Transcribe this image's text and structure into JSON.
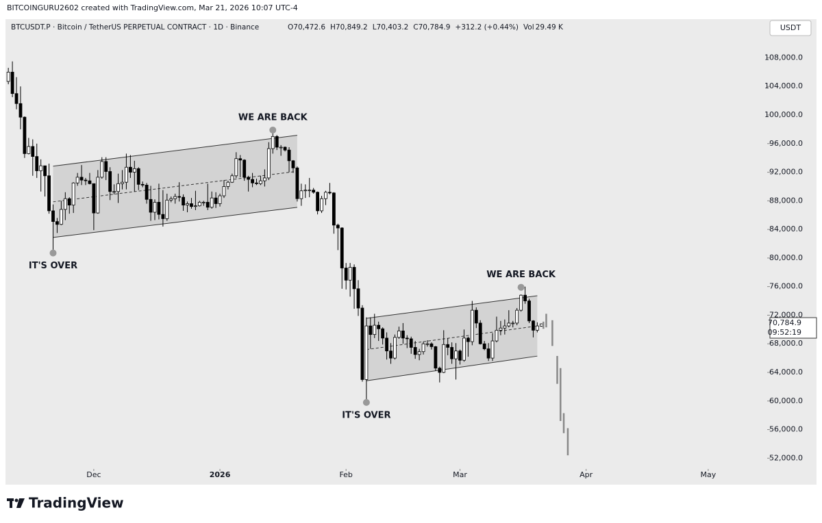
{
  "header": {
    "credit": "BITCOINGURU2602 created with TradingView.com, Mar 21, 2026 10:07 UTC-4",
    "symbol": "BTCUSDT.P · Bitcoin / TetherUS PERPETUAL CONTRACT · 1D · Binance",
    "quote": [
      "O70,472.6",
      "H70,849.2",
      "L70,403.2",
      "C70,784.9",
      "+312.2 (+0.44%)",
      "Vol",
      "29.49 K"
    ],
    "currency": "USDT",
    "last_price": "70,784.9",
    "countdown": "09:52:19",
    "logo": "TradingView"
  },
  "chart_data": {
    "type": "candlestick",
    "up_color": "#ffffff",
    "down_color": "#000000",
    "background": "#ebebeb",
    "xlim": [
      -0.7,
      186.5
    ],
    "xticks": [
      {
        "value": 21,
        "label": "Dec"
      },
      {
        "value": 52,
        "label": "2026"
      },
      {
        "value": 83,
        "label": "Feb"
      },
      {
        "value": 111,
        "label": "Mar"
      },
      {
        "value": 142,
        "label": "Apr"
      },
      {
        "value": 172,
        "label": "May"
      }
    ],
    "ylim": [
      50500,
      111300
    ],
    "yticks": [
      {
        "value": 52000,
        "label": "52,000.0"
      },
      {
        "value": 56000,
        "label": "56,000.0"
      },
      {
        "value": 60000,
        "label": "60,000.0"
      },
      {
        "value": 64000,
        "label": "64,000.0"
      },
      {
        "value": 68000,
        "label": "68,000.0"
      },
      {
        "value": 72000,
        "label": "72,000.0"
      },
      {
        "value": 76000,
        "label": "76,000.0"
      },
      {
        "value": 80000,
        "label": "80,000.0"
      },
      {
        "value": 84000,
        "label": "84,000.0"
      },
      {
        "value": 88000,
        "label": "88,000.0"
      },
      {
        "value": 92000,
        "label": "92,000.0"
      },
      {
        "value": 96000,
        "label": "96,000.0"
      },
      {
        "value": 100000,
        "label": "100,000.0"
      },
      {
        "value": 104000,
        "label": "104,000.0"
      },
      {
        "value": 108000,
        "label": "108,000.0"
      }
    ],
    "candles": [
      [
        104700,
        106600,
        104300,
        106000
      ],
      [
        106000,
        107500,
        102500,
        103000
      ],
      [
        103000,
        105300,
        100800,
        101600
      ],
      [
        101600,
        104000,
        98000,
        99700
      ],
      [
        99700,
        99800,
        94000,
        94600
      ],
      [
        94600,
        96800,
        94500,
        95600
      ],
      [
        95600,
        96600,
        91500,
        94200
      ],
      [
        94200,
        96000,
        91200,
        92200
      ],
      [
        92200,
        93800,
        89300,
        92900
      ],
      [
        92900,
        92900,
        88600,
        91500
      ],
      [
        91500,
        93200,
        86200,
        86600
      ],
      [
        86600,
        87500,
        80600,
        85100
      ],
      [
        85100,
        85600,
        83500,
        84700
      ],
      [
        84700,
        88000,
        84600,
        86800
      ],
      [
        86800,
        89200,
        85300,
        88300
      ],
      [
        88300,
        88500,
        86200,
        87400
      ],
      [
        87400,
        90600,
        86300,
        90500
      ],
      [
        90500,
        91900,
        90100,
        91300
      ],
      [
        91300,
        93000,
        90200,
        90900
      ],
      [
        90900,
        91200,
        90200,
        90800
      ],
      [
        90800,
        91900,
        90300,
        90400
      ],
      [
        90400,
        90400,
        83900,
        86300
      ],
      [
        86300,
        92300,
        86200,
        91300
      ],
      [
        91300,
        94100,
        91100,
        93500
      ],
      [
        93500,
        94100,
        90900,
        92100
      ],
      [
        92100,
        92700,
        88100,
        89300
      ],
      [
        89300,
        90300,
        88900,
        89300
      ],
      [
        89300,
        91800,
        87700,
        90400
      ],
      [
        90400,
        92300,
        89600,
        90600
      ],
      [
        90600,
        94600,
        89600,
        92700
      ],
      [
        92700,
        94400,
        91200,
        92000
      ],
      [
        92000,
        93600,
        89300,
        92500
      ],
      [
        92500,
        92700,
        89500,
        90300
      ],
      [
        90300,
        90700,
        89900,
        90200
      ],
      [
        90200,
        90500,
        87600,
        88200
      ],
      [
        88200,
        90100,
        85200,
        86400
      ],
      [
        86400,
        88200,
        85300,
        87800
      ],
      [
        87800,
        90400,
        85400,
        86100
      ],
      [
        86100,
        89500,
        84400,
        85500
      ],
      [
        85500,
        89000,
        85200,
        88100
      ],
      [
        88100,
        88600,
        87800,
        88300
      ],
      [
        88300,
        89000,
        87600,
        88600
      ],
      [
        88600,
        90600,
        87900,
        88500
      ],
      [
        88500,
        88900,
        86600,
        87400
      ],
      [
        87400,
        87900,
        86400,
        87600
      ],
      [
        87600,
        88400,
        86900,
        87200
      ],
      [
        87200,
        89400,
        86700,
        87300
      ],
      [
        87300,
        88000,
        87200,
        87800
      ],
      [
        87800,
        88000,
        87300,
        87800
      ],
      [
        87800,
        90400,
        86700,
        87100
      ],
      [
        87100,
        89300,
        86900,
        88400
      ],
      [
        88400,
        89200,
        87000,
        87600
      ],
      [
        87600,
        89000,
        87200,
        88700
      ],
      [
        88700,
        90900,
        88400,
        90000
      ],
      [
        90000,
        90800,
        89600,
        90600
      ],
      [
        90600,
        91800,
        90500,
        91500
      ],
      [
        91500,
        94800,
        91200,
        93900
      ],
      [
        93900,
        94400,
        91300,
        93700
      ],
      [
        93700,
        93800,
        90800,
        91300
      ],
      [
        91300,
        91500,
        89300,
        91000
      ],
      [
        91000,
        91900,
        89900,
        90500
      ],
      [
        90500,
        91100,
        90200,
        90400
      ],
      [
        90400,
        91500,
        90200,
        90800
      ],
      [
        90800,
        92400,
        90000,
        91200
      ],
      [
        91200,
        96200,
        90900,
        95300
      ],
      [
        95300,
        97900,
        94600,
        97000
      ],
      [
        97000,
        97200,
        95100,
        95500
      ],
      [
        95500,
        95800,
        94300,
        95500
      ],
      [
        95500,
        95600,
        94900,
        95100
      ],
      [
        95100,
        95500,
        92000,
        93600
      ],
      [
        93600,
        93700,
        91900,
        92600
      ],
      [
        92600,
        92800,
        87900,
        88300
      ],
      [
        88300,
        90400,
        87300,
        89400
      ],
      [
        89400,
        90300,
        88400,
        89500
      ],
      [
        89500,
        91200,
        88500,
        89500
      ],
      [
        89500,
        89800,
        89000,
        89200
      ],
      [
        89200,
        89300,
        86100,
        86600
      ],
      [
        86600,
        88700,
        86300,
        88300
      ],
      [
        88300,
        89400,
        87400,
        89200
      ],
      [
        89200,
        90500,
        88900,
        89100
      ],
      [
        89100,
        89200,
        83400,
        84600
      ],
      [
        84600,
        84800,
        81100,
        84200
      ],
      [
        84200,
        84300,
        75700,
        78600
      ],
      [
        78600,
        79300,
        75600,
        76900
      ],
      [
        76900,
        79300,
        74600,
        78700
      ],
      [
        78700,
        79100,
        72900,
        75700
      ],
      [
        75700,
        76900,
        71900,
        73000
      ],
      [
        73000,
        73400,
        62700,
        63000
      ],
      [
        63000,
        71700,
        60000,
        70500
      ],
      [
        70500,
        71700,
        67300,
        69300
      ],
      [
        69300,
        72200,
        68800,
        70600
      ],
      [
        70600,
        71100,
        68400,
        70100
      ],
      [
        70100,
        70300,
        67900,
        68800
      ],
      [
        68800,
        69600,
        65800,
        67000
      ],
      [
        67000,
        68100,
        65200,
        66000
      ],
      [
        66000,
        69300,
        65800,
        68900
      ],
      [
        68900,
        70400,
        68700,
        69800
      ],
      [
        69800,
        70900,
        68000,
        68800
      ],
      [
        68800,
        69200,
        67400,
        68700
      ],
      [
        68700,
        69000,
        66600,
        67500
      ],
      [
        67500,
        68400,
        65900,
        66500
      ],
      [
        66500,
        67300,
        65700,
        66900
      ],
      [
        66900,
        68300,
        66500,
        68000
      ],
      [
        68000,
        68500,
        67600,
        68000
      ],
      [
        68000,
        68200,
        67200,
        67600
      ],
      [
        67600,
        67700,
        64200,
        64600
      ],
      [
        64600,
        64800,
        62600,
        64000
      ],
      [
        64000,
        69900,
        63900,
        67900
      ],
      [
        67900,
        68800,
        66400,
        67500
      ],
      [
        67500,
        68200,
        65200,
        65900
      ],
      [
        65900,
        68100,
        63000,
        67000
      ],
      [
        67000,
        67200,
        65100,
        65700
      ],
      [
        65700,
        70000,
        65500,
        68800
      ],
      [
        68800,
        69000,
        66200,
        68300
      ],
      [
        68300,
        74000,
        67800,
        72700
      ],
      [
        72700,
        73100,
        70200,
        70900
      ],
      [
        70900,
        71300,
        67900,
        68000
      ],
      [
        68000,
        68400,
        67100,
        67300
      ],
      [
        67300,
        68100,
        65600,
        66000
      ],
      [
        66000,
        69500,
        65600,
        68400
      ],
      [
        68400,
        71800,
        68200,
        69900
      ],
      [
        69900,
        71200,
        69200,
        70200
      ],
      [
        70200,
        71400,
        69300,
        70500
      ],
      [
        70500,
        72700,
        70300,
        70900
      ],
      [
        70900,
        71200,
        70300,
        70900
      ],
      [
        70900,
        73000,
        70600,
        72700
      ],
      [
        72700,
        74900,
        72500,
        74800
      ],
      [
        74800,
        76000,
        73600,
        74000
      ],
      [
        74000,
        74300,
        70900,
        71200
      ],
      [
        71200,
        71300,
        68900,
        69900
      ],
      [
        69900,
        71000,
        69600,
        70500
      ],
      [
        70472.6,
        70849.2,
        70403.2,
        70784.9
      ]
    ],
    "projection": {
      "color": "#888888",
      "x": [
        131.5,
        132.2,
        133.7,
        134.9,
        135.7,
        136.5,
        137.5
      ],
      "high": [
        71100,
        72200,
        71300,
        66300,
        64600,
        58300,
        56200
      ],
      "low": [
        70100,
        70300,
        67700,
        62400,
        57200,
        55500,
        52400
      ]
    },
    "channels": [
      {
        "x": [
          11,
          71
        ],
        "top": [
          92850,
          97160
        ],
        "bottom": [
          82870,
          87090
        ]
      },
      {
        "x": [
          88,
          130
        ],
        "top": [
          71560,
          74720
        ],
        "bottom": [
          62830,
          66280
        ]
      }
    ],
    "annotations": [
      {
        "text": "IT'S OVER",
        "x": 11,
        "price": 80700,
        "position": "below"
      },
      {
        "text": "WE ARE BACK",
        "x": 65,
        "price": 97900,
        "position": "above"
      },
      {
        "text": "IT'S OVER",
        "x": 88,
        "price": 59800,
        "position": "below"
      },
      {
        "text": "WE ARE BACK",
        "x": 126,
        "price": 75900,
        "position": "above"
      }
    ]
  }
}
